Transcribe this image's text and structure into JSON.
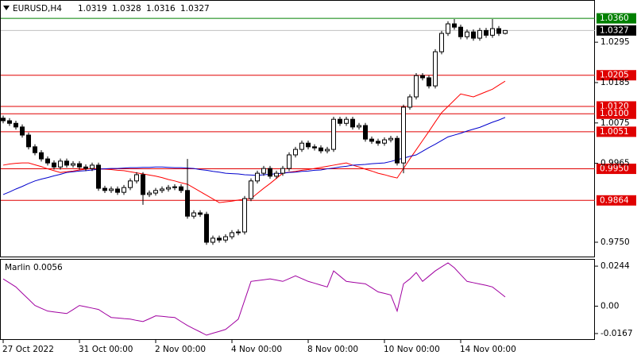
{
  "chart_data": [
    {
      "type": "candlestick",
      "title": "EURUSD,H4",
      "categories": [
        "27 Oct 2022",
        null,
        null,
        null,
        null,
        null,
        null,
        null,
        null,
        null,
        null,
        null,
        "31 Oct 00:00",
        null,
        null,
        null,
        null,
        null,
        null,
        null,
        null,
        null,
        null,
        null,
        "2 Nov 00:00",
        null,
        null,
        null,
        null,
        null,
        null,
        null,
        null,
        null,
        null,
        null,
        "4 Nov 00:00",
        null,
        null,
        null,
        null,
        null,
        null,
        null,
        null,
        null,
        null,
        null,
        "8 Nov 00:00",
        null,
        null,
        null,
        null,
        null,
        null,
        null,
        null,
        null,
        null,
        null,
        "10 Nov 00:00",
        null,
        null,
        null,
        null,
        null,
        null,
        null,
        null,
        null,
        null,
        null,
        "14 Nov 00:00",
        null,
        null,
        null,
        null,
        null,
        null,
        null
      ],
      "open": [
        1.0088,
        1.0081,
        1.0074,
        1.0064,
        1.0042,
        1.001,
        0.9994,
        0.9977,
        0.9966,
        0.9955,
        0.9971,
        0.996,
        0.9964,
        0.9955,
        0.9951,
        0.996,
        0.9897,
        0.9891,
        0.9895,
        0.9886,
        0.9899,
        0.9917,
        0.9934,
        0.988,
        0.9884,
        0.9891,
        0.9895,
        0.9899,
        0.9901,
        0.9891,
        0.9821,
        0.983,
        0.9826,
        0.975,
        0.9761,
        0.9756,
        0.9765,
        0.9776,
        0.9778,
        0.9869,
        0.9917,
        0.9938,
        0.9951,
        0.993,
        0.9938,
        0.9951,
        0.9988,
        1.0003,
        1.002,
        1.001,
        1.0007,
        0.9999,
        1.0003,
        1.0085,
        1.0074,
        1.0085,
        1.0064,
        1.0068,
        1.0031,
        1.0025,
        1.002,
        1.0029,
        1.0033,
        0.9966,
        1.0118,
        1.0146,
        1.0204,
        1.0198,
        1.0176,
        1.0269,
        1.0319,
        1.0345,
        1.0336,
        1.031,
        1.0323,
        1.0306,
        1.0327,
        1.0314,
        1.0332,
        1.0319
      ],
      "high": [
        1.0095,
        1.0088,
        1.0081,
        1.0071,
        1.0049,
        1.0017,
        1.0001,
        0.9984,
        0.9973,
        0.9978,
        0.9978,
        0.9971,
        0.9971,
        0.9962,
        0.9967,
        0.9967,
        0.9904,
        0.9902,
        0.9902,
        0.9906,
        0.9924,
        0.9941,
        0.9941,
        0.9891,
        0.9898,
        0.9902,
        0.9906,
        0.9908,
        0.9908,
        0.9977,
        0.9837,
        0.9837,
        0.9833,
        0.9768,
        0.9768,
        0.9772,
        0.9783,
        0.9785,
        0.9876,
        0.9924,
        0.9945,
        0.9958,
        0.9958,
        0.9945,
        0.9958,
        0.9995,
        1.001,
        1.0027,
        1.0027,
        1.0017,
        1.0014,
        1.001,
        1.0092,
        1.0092,
        1.0092,
        1.0092,
        1.0075,
        1.0075,
        1.0038,
        1.0032,
        1.0036,
        1.004,
        1.004,
        1.0125,
        1.0153,
        1.0211,
        1.0211,
        1.0205,
        1.0276,
        1.0326,
        1.0352,
        1.0358,
        1.0343,
        1.033,
        1.033,
        1.0334,
        1.0334,
        1.0358,
        1.0339,
        1.0328
      ],
      "low": [
        1.0074,
        1.0067,
        1.0057,
        1.0035,
        1.0003,
        0.9987,
        0.997,
        0.9959,
        0.9948,
        0.9948,
        0.9953,
        0.9953,
        0.9948,
        0.9944,
        0.9944,
        0.989,
        0.9884,
        0.9884,
        0.9879,
        0.9879,
        0.9892,
        0.991,
        0.9852,
        0.9873,
        0.9877,
        0.9884,
        0.9888,
        0.9892,
        0.9884,
        0.9814,
        0.9814,
        0.9819,
        0.9743,
        0.9743,
        0.9749,
        0.9749,
        0.9758,
        0.9769,
        0.9771,
        0.9862,
        0.991,
        0.9931,
        0.9923,
        0.9923,
        0.9931,
        0.9944,
        0.9981,
        0.9996,
        1.0003,
        1.0,
        0.9992,
        0.9992,
        0.9996,
        1.0067,
        1.0067,
        1.0057,
        1.0057,
        1.0024,
        1.0018,
        1.0013,
        1.0013,
        1.0022,
        0.9959,
        0.9938,
        1.0111,
        1.0139,
        1.0191,
        1.0169,
        1.0169,
        1.0262,
        1.0312,
        1.0329,
        1.0303,
        1.0303,
        1.0299,
        1.0299,
        1.0307,
        1.0307,
        1.0312,
        1.0316
      ],
      "close": [
        1.0081,
        1.0074,
        1.0064,
        1.0042,
        1.001,
        0.9994,
        0.9977,
        0.9966,
        0.9955,
        0.9971,
        0.996,
        0.9964,
        0.9955,
        0.9951,
        0.996,
        0.9897,
        0.9891,
        0.9895,
        0.9886,
        0.9899,
        0.9917,
        0.9934,
        0.988,
        0.9884,
        0.9891,
        0.9895,
        0.9899,
        0.9901,
        0.9891,
        0.9821,
        0.983,
        0.9826,
        0.975,
        0.9761,
        0.9756,
        0.9765,
        0.9776,
        0.9778,
        0.9869,
        0.9917,
        0.9938,
        0.9951,
        0.993,
        0.9938,
        0.9951,
        0.9988,
        1.0003,
        1.002,
        1.001,
        1.0007,
        0.9999,
        1.0003,
        1.0085,
        1.0074,
        1.0085,
        1.0064,
        1.0068,
        1.0031,
        1.0025,
        1.002,
        1.0029,
        1.0033,
        0.9966,
        1.0118,
        1.0146,
        1.0204,
        1.0198,
        1.0176,
        1.0269,
        1.0319,
        1.0345,
        1.0336,
        1.031,
        1.0323,
        1.0306,
        1.0327,
        1.0314,
        1.0332,
        1.0319,
        1.0327
      ],
      "up_color": "#ffffff",
      "down_color": "#000000",
      "series": [
        {
          "color": "#ff0000",
          "values": [
            0.996,
            0.9963,
            0.9965,
            0.9966,
            0.9966,
            0.9961,
            0.9956,
            0.995,
            0.9945,
            0.994,
            0.9942,
            0.9944,
            0.9947,
            0.9949,
            0.9951,
            0.995,
            0.9949,
            0.9948,
            0.9946,
            0.9945,
            0.9942,
            0.9939,
            0.9936,
            0.9933,
            0.993,
            0.9926,
            0.9921,
            0.9917,
            0.9912,
            0.9908,
            0.9898,
            0.9888,
            0.9878,
            0.9868,
            0.9858,
            0.986,
            0.9862,
            0.9865,
            0.9867,
            0.9869,
            0.9883,
            0.9897,
            0.991,
            0.9924,
            0.9938,
            0.9941,
            0.9943,
            0.9946,
            0.9948,
            0.9951,
            0.9954,
            0.9957,
            0.996,
            0.9963,
            0.9966,
            0.996,
            0.9955,
            0.9949,
            0.9944,
            0.9938,
            0.9934,
            0.9929,
            0.9925,
            0.9951,
            0.9977,
            1.0002,
            1.0027,
            1.0052,
            1.0078,
            1.0103,
            1.012,
            1.0137,
            1.0154,
            1.015,
            1.0146,
            1.0153,
            1.016,
            1.0167,
            1.0178,
            1.0189
          ]
        },
        {
          "color": "#0000cd",
          "values": [
            0.988,
            0.9887,
            0.9895,
            0.9902,
            0.991,
            0.9917,
            0.9922,
            0.9926,
            0.9931,
            0.9935,
            0.994,
            0.9942,
            0.9944,
            0.9945,
            0.9947,
            0.9949,
            0.995,
            0.9951,
            0.9951,
            0.9952,
            0.9953,
            0.9953,
            0.9954,
            0.9954,
            0.9955,
            0.9955,
            0.9954,
            0.9953,
            0.9953,
            0.9952,
            0.9951,
            0.9948,
            0.9946,
            0.9943,
            0.9941,
            0.9938,
            0.9937,
            0.9936,
            0.9934,
            0.9933,
            0.9932,
            0.9934,
            0.9935,
            0.9937,
            0.9938,
            0.994,
            0.9941,
            0.9943,
            0.9944,
            0.9946,
            0.9947,
            0.995,
            0.9952,
            0.9955,
            0.9957,
            0.996,
            0.9961,
            0.9962,
            0.9964,
            0.9965,
            0.9966,
            0.997,
            0.9975,
            0.9979,
            0.9984,
            0.9988,
            0.9998,
            1.0008,
            1.0017,
            1.0027,
            1.0037,
            1.0042,
            1.0047,
            1.0053,
            1.0058,
            1.0063,
            1.007,
            1.0077,
            1.0083,
            1.009
          ]
        }
      ],
      "levels": [
        {
          "value": 1.036,
          "label": "1.0360",
          "color": "#008000"
        },
        {
          "value": 1.0205,
          "color": "#e00000"
        },
        {
          "value": 1.012,
          "label": "1.0120",
          "color": "#e00000"
        },
        {
          "value": 1.01,
          "label": "1.0100",
          "color": "#e00000"
        },
        {
          "value": 1.0051,
          "color": "#e00000"
        },
        {
          "value": 0.995,
          "label": "0.9950",
          "color": "#e00000"
        },
        {
          "value": 0.9864,
          "color": "#e00000"
        }
      ],
      "ylim": [
        0.9711,
        1.041
      ],
      "yticks": [
        1.0295,
        1.0185,
        1.0075,
        0.9965,
        {
          "value": 0.975,
          "label": "0.9750"
        }
      ]
    },
    {
      "type": "line",
      "title": "Marlin",
      "color": "#a000a0",
      "values": [
        0.0166,
        0.0142,
        0.0117,
        0.0079,
        0.0042,
        0.0004,
        -0.0013,
        -0.003,
        -0.0035,
        -0.004,
        -0.0045,
        -0.0021,
        0.0004,
        -0.0004,
        -0.0012,
        -0.002,
        -0.0045,
        -0.0069,
        -0.0072,
        -0.0076,
        -0.0079,
        -0.0087,
        -0.0094,
        -0.0077,
        -0.0059,
        -0.0062,
        -0.0066,
        -0.0069,
        -0.0094,
        -0.0118,
        -0.0138,
        -0.0157,
        -0.0177,
        -0.0165,
        -0.0154,
        -0.0142,
        -0.0111,
        -0.0079,
        0.0036,
        0.0151,
        0.0156,
        0.0161,
        0.0166,
        0.0159,
        0.0151,
        0.0168,
        0.0185,
        0.0168,
        0.0151,
        0.014,
        0.0128,
        0.0117,
        0.0215,
        0.0183,
        0.0151,
        0.0146,
        0.0141,
        0.0136,
        0.0112,
        0.0087,
        0.0078,
        0.0068,
        -0.003,
        0.0136,
        0.0166,
        0.0205,
        0.0151,
        0.0183,
        0.0215,
        0.024,
        0.0264,
        0.0234,
        0.0192,
        0.0151,
        0.0143,
        0.0135,
        0.0127,
        0.0117,
        0.0087,
        0.0056
      ],
      "ylim": [
        -0.0206,
        0.0288
      ],
      "yticks": [
        0.0244,
        {
          "value": 0,
          "label": "0.00"
        },
        -0.0167
      ]
    }
  ]
}
